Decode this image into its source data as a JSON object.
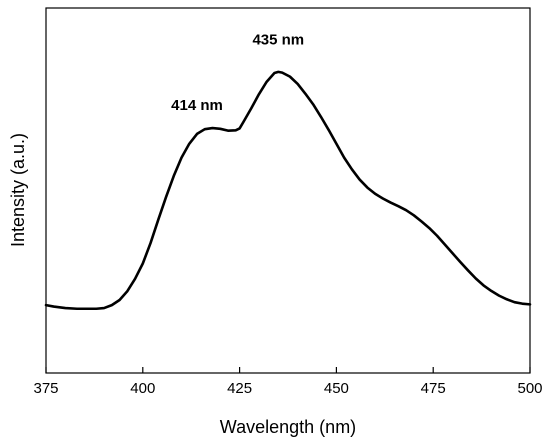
{
  "chart_data": {
    "type": "line",
    "xlabel": "Wavelength (nm)",
    "ylabel": "Intensity (a.u.)",
    "xlim": [
      375,
      500
    ],
    "ylim": [
      0,
      1
    ],
    "xticks": [
      375,
      400,
      425,
      450,
      475,
      500
    ],
    "yticks_shown": false,
    "grid": false,
    "legend": "none",
    "annotations": [
      {
        "text": "414 nm",
        "x": 414,
        "y": 0.72
      },
      {
        "text": "435 nm",
        "x": 435,
        "y": 0.9
      }
    ],
    "series": [
      {
        "color": "#000000",
        "x": [
          375,
          377,
          380,
          383,
          385,
          388,
          390,
          392,
          394,
          396,
          398,
          400,
          402,
          404,
          406,
          408,
          410,
          412,
          414,
          416,
          418,
          420,
          422,
          424,
          425,
          426,
          428,
          430,
          432,
          434,
          435,
          436,
          438,
          440,
          442,
          444,
          446,
          448,
          450,
          452,
          454,
          456,
          458,
          460,
          462,
          464,
          466,
          468,
          470,
          472,
          474,
          476,
          478,
          480,
          482,
          484,
          486,
          488,
          490,
          492,
          494,
          496,
          498,
          500
        ],
        "y": [
          0.186,
          0.182,
          0.178,
          0.176,
          0.176,
          0.176,
          0.178,
          0.186,
          0.2,
          0.224,
          0.258,
          0.3,
          0.356,
          0.42,
          0.482,
          0.54,
          0.59,
          0.628,
          0.655,
          0.668,
          0.671,
          0.669,
          0.664,
          0.665,
          0.67,
          0.688,
          0.725,
          0.764,
          0.798,
          0.822,
          0.825,
          0.823,
          0.812,
          0.792,
          0.765,
          0.736,
          0.702,
          0.666,
          0.628,
          0.59,
          0.558,
          0.53,
          0.508,
          0.491,
          0.478,
          0.467,
          0.457,
          0.446,
          0.432,
          0.415,
          0.397,
          0.376,
          0.352,
          0.328,
          0.304,
          0.281,
          0.259,
          0.24,
          0.225,
          0.212,
          0.202,
          0.194,
          0.19,
          0.188
        ]
      }
    ]
  }
}
